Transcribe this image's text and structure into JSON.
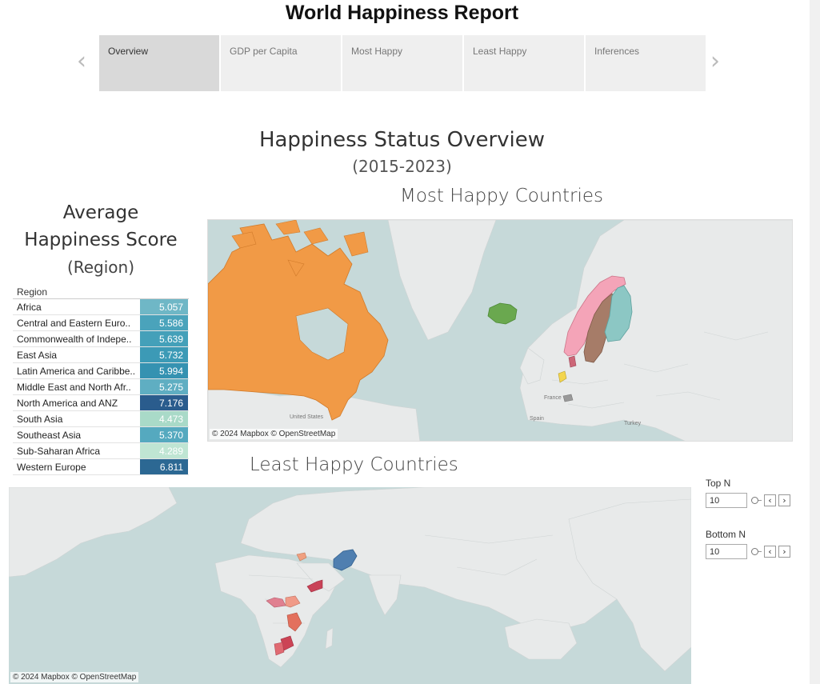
{
  "header": {
    "title": "World Happiness Report"
  },
  "nav": {
    "prev_icon": "chevron-left-icon",
    "next_icon": "chevron-right-icon",
    "tabs": [
      {
        "label": "Overview",
        "active": true
      },
      {
        "label": "GDP per Capita",
        "active": false
      },
      {
        "label": "Most Happy",
        "active": false
      },
      {
        "label": "Least Happy",
        "active": false
      },
      {
        "label": "Inferences",
        "active": false
      }
    ]
  },
  "overview": {
    "title": "Happiness Status Overview",
    "subtitle": "(2015-2023)"
  },
  "avg_panel": {
    "title_line1": "Average",
    "title_line2": "Happiness Score",
    "title_line3": "(Region)",
    "column_header": "Region",
    "rows": [
      {
        "region": "Africa",
        "score": "5.057",
        "color": "#6fb7c6"
      },
      {
        "region": "Central and Eastern Euro..",
        "score": "5.586",
        "color": "#4aa3bb"
      },
      {
        "region": "Commonwealth of Indepe..",
        "score": "5.639",
        "color": "#44a0b9"
      },
      {
        "region": "East Asia",
        "score": "5.732",
        "color": "#3c9ab6"
      },
      {
        "region": "Latin America and Caribbe..",
        "score": "5.994",
        "color": "#3592b1"
      },
      {
        "region": "Middle East and North Afr..",
        "score": "5.275",
        "color": "#5faec2"
      },
      {
        "region": "North America and ANZ",
        "score": "7.176",
        "color": "#2a5c8d"
      },
      {
        "region": "South Asia",
        "score": "4.473",
        "color": "#a9dac8"
      },
      {
        "region": "Southeast Asia",
        "score": "5.370",
        "color": "#55a9bf"
      },
      {
        "region": "Sub-Saharan Africa",
        "score": "4.289",
        "color": "#bfe5d3"
      },
      {
        "region": "Western Europe",
        "score": "6.811",
        "color": "#2c6893"
      }
    ]
  },
  "most_happy": {
    "title": "Most Happy Countries",
    "attribution": "© 2024 Mapbox © OpenStreetMap",
    "labels": {
      "us": "United States",
      "spain": "Spain",
      "france": "France",
      "turkey": "Turkey"
    },
    "colors": {
      "canada": "#f19a46",
      "iceland": "#6aa84f",
      "norway": "#f4a4b8",
      "sweden": "#a67c68",
      "finland": "#8cc7c4",
      "netherlands": "#f3d54e",
      "denmark": "#cc6677",
      "switzerland": "#999999"
    }
  },
  "least_happy": {
    "title": "Least Happy Countries",
    "attribution": "© 2024 Mapbox © OpenStreetMap",
    "colors": {
      "afghanistan": "#4f7fb0",
      "yemen": "#c94257",
      "car": "#e08090",
      "south_sudan": "#f09a88",
      "libya": "#f0a080",
      "tanzania": "#e3705d",
      "zimbabwe": "#cc4455",
      "botswana": "#e06a72"
    }
  },
  "controls": {
    "top_n": {
      "label": "Top N",
      "value": "10"
    },
    "bottom_n": {
      "label": "Bottom N",
      "value": "10"
    },
    "decrement_icon": "chevron-left-icon",
    "increment_icon": "chevron-right-icon",
    "decrement_symbol": "‹",
    "increment_symbol": "›"
  }
}
